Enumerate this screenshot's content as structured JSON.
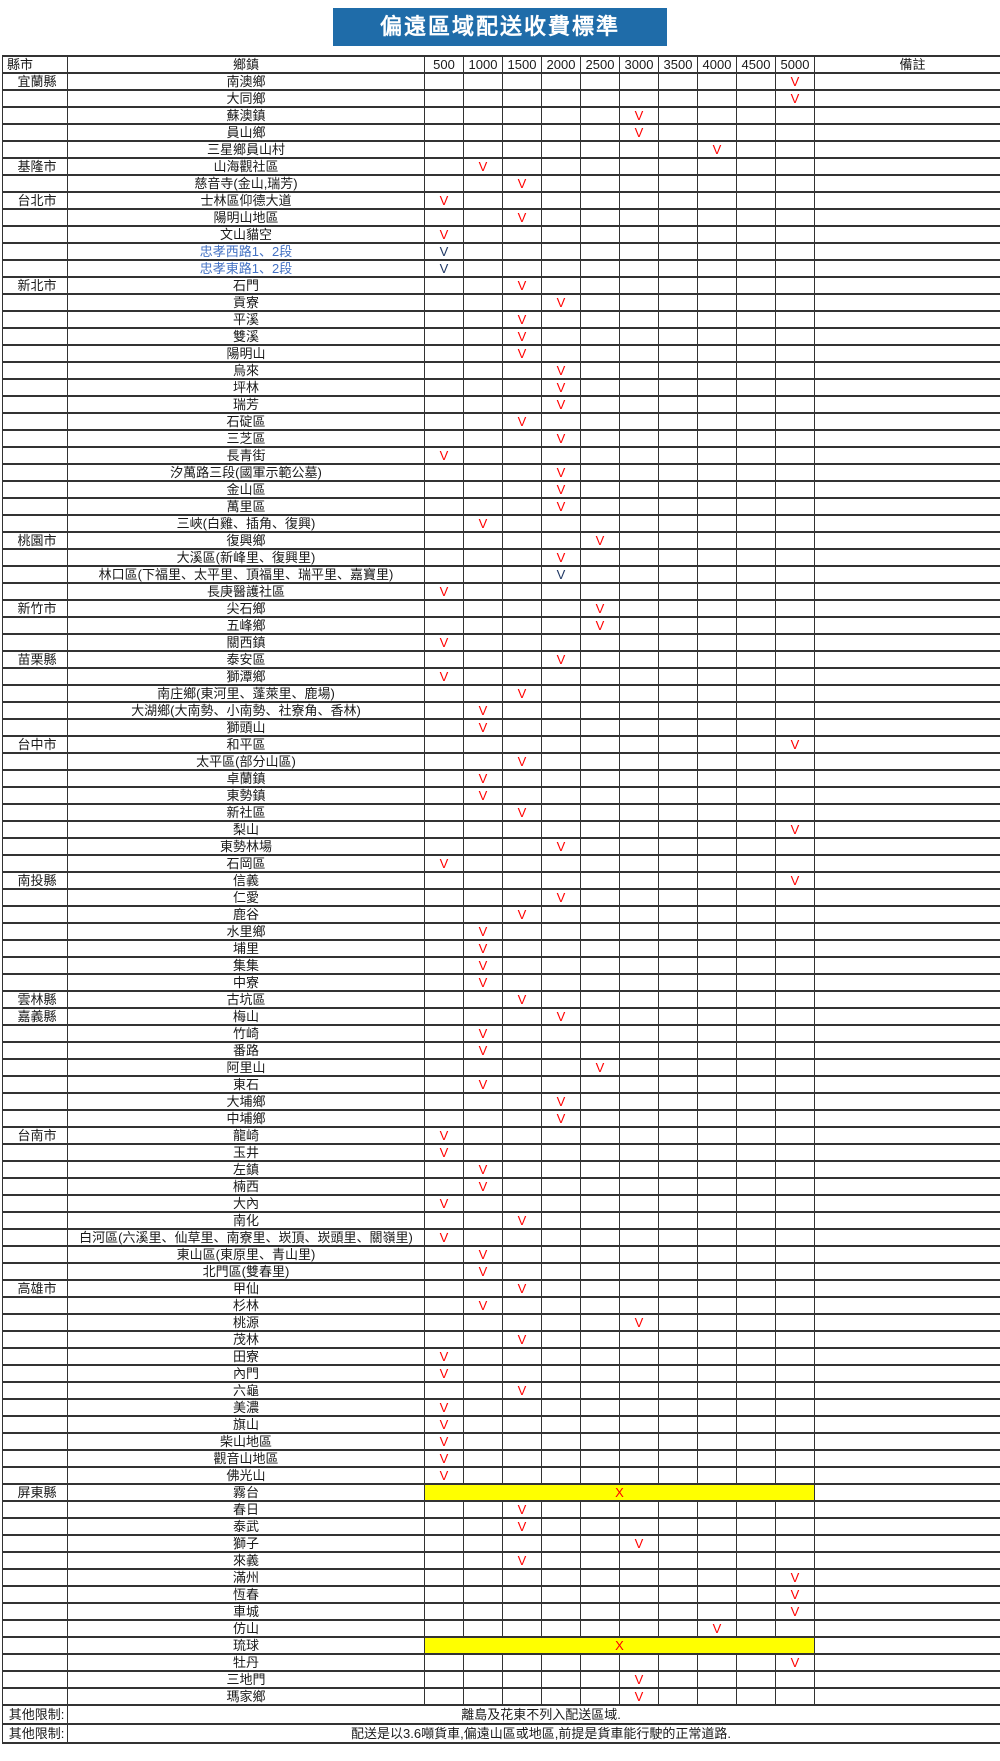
{
  "title": "偏遠區域配送收費標準",
  "colors": {
    "title_bg": "#1F6CA9",
    "title_text": "#FFFFFF",
    "mark_red": "#FF0000",
    "mark_blue": "#203864",
    "town_blue": "#4472C4",
    "highlight_yellow": "#FFFF00",
    "grid_border": "#333333"
  },
  "columns": {
    "county": "縣市",
    "town": "鄉鎮",
    "fees": [
      "500",
      "1000",
      "1500",
      "2000",
      "2500",
      "3000",
      "3500",
      "4000",
      "4500",
      "5000"
    ],
    "note": "備註"
  },
  "marks": {
    "check": "V",
    "cross": "X"
  },
  "rows": [
    {
      "county": "宜蘭縣",
      "town": "南澳鄉",
      "fee": "5000",
      "mark": "V",
      "mark_color": "red"
    },
    {
      "county": "",
      "town": "大同鄉",
      "fee": "5000",
      "mark": "V",
      "mark_color": "red"
    },
    {
      "county": "",
      "town": "蘇澳鎮",
      "fee": "3000",
      "mark": "V",
      "mark_color": "red"
    },
    {
      "county": "",
      "town": "員山鄉",
      "fee": "3000",
      "mark": "V",
      "mark_color": "red"
    },
    {
      "county": "",
      "town": "三星鄉員山村",
      "fee": "4000",
      "mark": "V",
      "mark_color": "red"
    },
    {
      "county": "基隆市",
      "town": "山海觀社區",
      "fee": "1000",
      "mark": "V",
      "mark_color": "red"
    },
    {
      "county": "",
      "town": "慈音寺(金山,瑞芳)",
      "fee": "1500",
      "mark": "V",
      "mark_color": "red"
    },
    {
      "county": "台北市",
      "town": "士林區仰德大道",
      "fee": "500",
      "mark": "V",
      "mark_color": "red"
    },
    {
      "county": "",
      "town": "陽明山地區",
      "fee": "1500",
      "mark": "V",
      "mark_color": "red"
    },
    {
      "county": "",
      "town": "文山貓空",
      "fee": "500",
      "mark": "V",
      "mark_color": "red"
    },
    {
      "county": "",
      "town": "忠孝西路1、2段",
      "fee": "500",
      "mark": "V",
      "mark_color": "blue",
      "town_color": "blue"
    },
    {
      "county": "",
      "town": "忠孝東路1、2段",
      "fee": "500",
      "mark": "V",
      "mark_color": "blue",
      "town_color": "blue"
    },
    {
      "county": "新北市",
      "town": "石門",
      "fee": "1500",
      "mark": "V",
      "mark_color": "red"
    },
    {
      "county": "",
      "town": "貢寮",
      "fee": "2000",
      "mark": "V",
      "mark_color": "red"
    },
    {
      "county": "",
      "town": "平溪",
      "fee": "1500",
      "mark": "V",
      "mark_color": "red"
    },
    {
      "county": "",
      "town": "雙溪",
      "fee": "1500",
      "mark": "V",
      "mark_color": "red"
    },
    {
      "county": "",
      "town": "陽明山",
      "fee": "1500",
      "mark": "V",
      "mark_color": "red"
    },
    {
      "county": "",
      "town": "烏來",
      "fee": "2000",
      "mark": "V",
      "mark_color": "red"
    },
    {
      "county": "",
      "town": "坪林",
      "fee": "2000",
      "mark": "V",
      "mark_color": "red"
    },
    {
      "county": "",
      "town": "瑞芳",
      "fee": "2000",
      "mark": "V",
      "mark_color": "red"
    },
    {
      "county": "",
      "town": "石碇區",
      "fee": "1500",
      "mark": "V",
      "mark_color": "red"
    },
    {
      "county": "",
      "town": "三芝區",
      "fee": "2000",
      "mark": "V",
      "mark_color": "red"
    },
    {
      "county": "",
      "town": "長青街",
      "fee": "500",
      "mark": "V",
      "mark_color": "red"
    },
    {
      "county": "",
      "town": "汐萬路三段(國軍示範公墓)",
      "fee": "2000",
      "mark": "V",
      "mark_color": "red"
    },
    {
      "county": "",
      "town": "金山區",
      "fee": "2000",
      "mark": "V",
      "mark_color": "red"
    },
    {
      "county": "",
      "town": "萬里區",
      "fee": "2000",
      "mark": "V",
      "mark_color": "red"
    },
    {
      "county": "",
      "town": "三峽(白雞、插角、復興)",
      "fee": "1000",
      "mark": "V",
      "mark_color": "red"
    },
    {
      "county": "桃園市",
      "town": "復興鄉",
      "fee": "2500",
      "mark": "V",
      "mark_color": "red"
    },
    {
      "county": "",
      "town": "大溪區(新峰里、復興里)",
      "fee": "2000",
      "mark": "V",
      "mark_color": "red"
    },
    {
      "county": "",
      "town": "林口區(下福里、太平里、頂福里、瑞平里、嘉寶里)",
      "fee": "2000",
      "mark": "V",
      "mark_color": "blue"
    },
    {
      "county": "",
      "town": "長庚醫護社區",
      "fee": "500",
      "mark": "V",
      "mark_color": "red"
    },
    {
      "county": "新竹市",
      "town": "尖石鄉",
      "fee": "2500",
      "mark": "V",
      "mark_color": "red"
    },
    {
      "county": "",
      "town": "五峰鄉",
      "fee": "2500",
      "mark": "V",
      "mark_color": "red"
    },
    {
      "county": "",
      "town": "關西鎮",
      "fee": "500",
      "mark": "V",
      "mark_color": "red"
    },
    {
      "county": "苗栗縣",
      "town": "泰安區",
      "fee": "2000",
      "mark": "V",
      "mark_color": "red"
    },
    {
      "county": "",
      "town": "獅潭鄉",
      "fee": "500",
      "mark": "V",
      "mark_color": "red"
    },
    {
      "county": "",
      "town": "南庄鄉(東河里、蓬萊里、鹿場)",
      "fee": "1500",
      "mark": "V",
      "mark_color": "red"
    },
    {
      "county": "",
      "town": "大湖鄉(大南勢、小南勢、社寮角、香林)",
      "fee": "1000",
      "mark": "V",
      "mark_color": "red"
    },
    {
      "county": "",
      "town": "獅頭山",
      "fee": "1000",
      "mark": "V",
      "mark_color": "red"
    },
    {
      "county": "台中市",
      "town": "和平區",
      "fee": "5000",
      "mark": "V",
      "mark_color": "red"
    },
    {
      "county": "",
      "town": "太平區(部分山區)",
      "fee": "1500",
      "mark": "V",
      "mark_color": "red"
    },
    {
      "county": "",
      "town": "卓蘭鎮",
      "fee": "1000",
      "mark": "V",
      "mark_color": "red"
    },
    {
      "county": "",
      "town": "東勢鎮",
      "fee": "1000",
      "mark": "V",
      "mark_color": "red"
    },
    {
      "county": "",
      "town": "新社區",
      "fee": "1500",
      "mark": "V",
      "mark_color": "red"
    },
    {
      "county": "",
      "town": "梨山",
      "fee": "5000",
      "mark": "V",
      "mark_color": "red"
    },
    {
      "county": "",
      "town": "東勢林場",
      "fee": "2000",
      "mark": "V",
      "mark_color": "red"
    },
    {
      "county": "",
      "town": "石岡區",
      "fee": "500",
      "mark": "V",
      "mark_color": "red"
    },
    {
      "county": "南投縣",
      "town": "信義",
      "fee": "5000",
      "mark": "V",
      "mark_color": "red"
    },
    {
      "county": "",
      "town": "仁愛",
      "fee": "2000",
      "mark": "V",
      "mark_color": "red"
    },
    {
      "county": "",
      "town": "鹿谷",
      "fee": "1500",
      "mark": "V",
      "mark_color": "red"
    },
    {
      "county": "",
      "town": "水里鄉",
      "fee": "1000",
      "mark": "V",
      "mark_color": "red"
    },
    {
      "county": "",
      "town": "埔里",
      "fee": "1000",
      "mark": "V",
      "mark_color": "red"
    },
    {
      "county": "",
      "town": "集集",
      "fee": "1000",
      "mark": "V",
      "mark_color": "red"
    },
    {
      "county": "",
      "town": "中寮",
      "fee": "1000",
      "mark": "V",
      "mark_color": "red"
    },
    {
      "county": "雲林縣",
      "town": "古坑區",
      "fee": "1500",
      "mark": "V",
      "mark_color": "red"
    },
    {
      "county": "嘉義縣",
      "town": "梅山",
      "fee": "2000",
      "mark": "V",
      "mark_color": "red"
    },
    {
      "county": "",
      "town": "竹崎",
      "fee": "1000",
      "mark": "V",
      "mark_color": "red"
    },
    {
      "county": "",
      "town": "番路",
      "fee": "1000",
      "mark": "V",
      "mark_color": "red"
    },
    {
      "county": "",
      "town": "阿里山",
      "fee": "2500",
      "mark": "V",
      "mark_color": "red"
    },
    {
      "county": "",
      "town": "東石",
      "fee": "1000",
      "mark": "V",
      "mark_color": "red"
    },
    {
      "county": "",
      "town": "大埔鄉",
      "fee": "2000",
      "mark": "V",
      "mark_color": "red"
    },
    {
      "county": "",
      "town": "中埔鄉",
      "fee": "2000",
      "mark": "V",
      "mark_color": "red"
    },
    {
      "county": "台南市",
      "town": "龍崎",
      "fee": "500",
      "mark": "V",
      "mark_color": "red"
    },
    {
      "county": "",
      "town": "玉井",
      "fee": "500",
      "mark": "V",
      "mark_color": "red"
    },
    {
      "county": "",
      "town": "左鎮",
      "fee": "1000",
      "mark": "V",
      "mark_color": "red"
    },
    {
      "county": "",
      "town": "楠西",
      "fee": "1000",
      "mark": "V",
      "mark_color": "red"
    },
    {
      "county": "",
      "town": "大內",
      "fee": "500",
      "mark": "V",
      "mark_color": "red"
    },
    {
      "county": "",
      "town": "南化",
      "fee": "1500",
      "mark": "V",
      "mark_color": "red"
    },
    {
      "county": "",
      "town": "白河區(六溪里、仙草里、南寮里、崁頂、崁頭里、關嶺里)",
      "fee": "500",
      "mark": "V",
      "mark_color": "red"
    },
    {
      "county": "",
      "town": "東山區(東原里、青山里)",
      "fee": "1000",
      "mark": "V",
      "mark_color": "red"
    },
    {
      "county": "",
      "town": "北門區(雙春里)",
      "fee": "1000",
      "mark": "V",
      "mark_color": "red"
    },
    {
      "county": "高雄市",
      "town": "甲仙",
      "fee": "1500",
      "mark": "V",
      "mark_color": "red"
    },
    {
      "county": "",
      "town": "杉林",
      "fee": "1000",
      "mark": "V",
      "mark_color": "red"
    },
    {
      "county": "",
      "town": "桃源",
      "fee": "3000",
      "mark": "V",
      "mark_color": "red"
    },
    {
      "county": "",
      "town": "茂林",
      "fee": "1500",
      "mark": "V",
      "mark_color": "red"
    },
    {
      "county": "",
      "town": "田寮",
      "fee": "500",
      "mark": "V",
      "mark_color": "red"
    },
    {
      "county": "",
      "town": "內門",
      "fee": "500",
      "mark": "V",
      "mark_color": "red"
    },
    {
      "county": "",
      "town": "六龜",
      "fee": "1500",
      "mark": "V",
      "mark_color": "red"
    },
    {
      "county": "",
      "town": "美濃",
      "fee": "500",
      "mark": "V",
      "mark_color": "red"
    },
    {
      "county": "",
      "town": "旗山",
      "fee": "500",
      "mark": "V",
      "mark_color": "red"
    },
    {
      "county": "",
      "town": "柴山地區",
      "fee": "500",
      "mark": "V",
      "mark_color": "red"
    },
    {
      "county": "",
      "town": "觀音山地區",
      "fee": "500",
      "mark": "V",
      "mark_color": "red"
    },
    {
      "county": "",
      "town": "佛光山",
      "fee": "500",
      "mark": "V",
      "mark_color": "red"
    },
    {
      "county": "屏東縣",
      "town": "霧台",
      "fee": "",
      "mark": "X",
      "mark_color": "red",
      "highlight": true
    },
    {
      "county": "",
      "town": "春日",
      "fee": "1500",
      "mark": "V",
      "mark_color": "red"
    },
    {
      "county": "",
      "town": "泰武",
      "fee": "1500",
      "mark": "V",
      "mark_color": "red"
    },
    {
      "county": "",
      "town": "獅子",
      "fee": "3000",
      "mark": "V",
      "mark_color": "red"
    },
    {
      "county": "",
      "town": "來義",
      "fee": "1500",
      "mark": "V",
      "mark_color": "red"
    },
    {
      "county": "",
      "town": "滿州",
      "fee": "5000",
      "mark": "V",
      "mark_color": "red"
    },
    {
      "county": "",
      "town": "恆春",
      "fee": "5000",
      "mark": "V",
      "mark_color": "red"
    },
    {
      "county": "",
      "town": "車城",
      "fee": "5000",
      "mark": "V",
      "mark_color": "red"
    },
    {
      "county": "",
      "town": "仿山",
      "fee": "4000",
      "mark": "V",
      "mark_color": "red"
    },
    {
      "county": "",
      "town": "琉球",
      "fee": "",
      "mark": "X",
      "mark_color": "red",
      "highlight": true
    },
    {
      "county": "",
      "town": "牡丹",
      "fee": "5000",
      "mark": "V",
      "mark_color": "red"
    },
    {
      "county": "",
      "town": "三地門",
      "fee": "3000",
      "mark": "V",
      "mark_color": "red"
    },
    {
      "county": "",
      "town": "瑪家鄉",
      "fee": "3000",
      "mark": "V",
      "mark_color": "red"
    }
  ],
  "footnotes": [
    {
      "label": "其他限制:",
      "text": "離島及花東不列入配送區域."
    },
    {
      "label": "其他限制:",
      "text": "配送是以3.6噸貨車,偏遠山區或地區,前提是貨車能行駛的正常道路."
    }
  ]
}
